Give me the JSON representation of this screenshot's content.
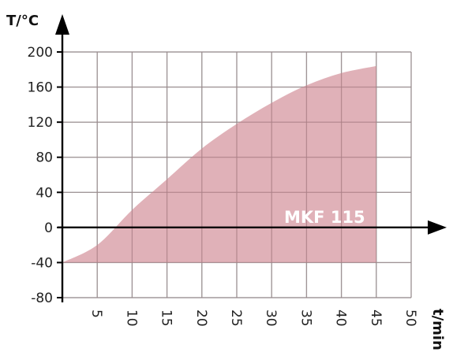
{
  "chart_data": {
    "type": "area",
    "title": "",
    "xlabel": "t/min",
    "ylabel": "T/°C",
    "xlim": [
      0,
      50
    ],
    "ylim": [
      -80,
      200
    ],
    "x_ticks": [
      "5",
      "10",
      "15",
      "20",
      "25",
      "30",
      "35",
      "40",
      "45",
      "50"
    ],
    "y_ticks": [
      "200",
      "160",
      "120",
      "80",
      "40",
      "0",
      "-40",
      "-80"
    ],
    "grid": true,
    "baseline": -40,
    "series": [
      {
        "name": "MKF 115",
        "color": "#d4939c",
        "x": [
          0,
          5,
          10,
          15,
          20,
          25,
          30,
          35,
          40,
          45
        ],
        "values": [
          -40,
          -20,
          20,
          55,
          90,
          118,
          142,
          162,
          176,
          184
        ]
      }
    ]
  }
}
